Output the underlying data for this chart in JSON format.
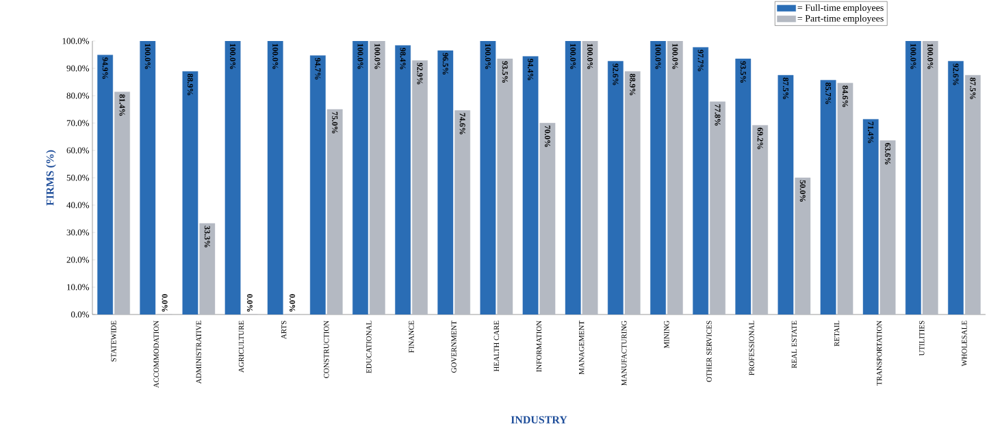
{
  "chart_data": {
    "type": "bar",
    "xlabel": "INDUSTRY",
    "ylabel": "FIRMS (%)",
    "categories": [
      "STATEWIDE",
      "ACCOMMODATION",
      "ADMINISTRATIVE",
      "AGRICULTURE",
      "ARTS",
      "CONSTRUCTION",
      "EDUCATIONAL",
      "FINANCE",
      "GOVERNMENT",
      "HEALTH CARE",
      "INFORMATION",
      "MANAGEMENT",
      "MANUFACTURING",
      "MINING",
      "OTHER SERVICES",
      "PROFESSIONAL",
      "REAL ESTATE",
      "RETAIL",
      "TRANSPORTATION",
      "UTILITIES",
      "WHOLESALE"
    ],
    "series": [
      {
        "name": "= Full-time employees",
        "color": "#2a6db5",
        "values": [
          94.9,
          100.0,
          88.9,
          100.0,
          100.0,
          94.7,
          100.0,
          98.4,
          96.5,
          100.0,
          94.4,
          100.0,
          92.6,
          100.0,
          97.7,
          93.5,
          87.5,
          85.7,
          71.4,
          100.0,
          92.6
        ],
        "value_labels": [
          "94.9%",
          "100.0%",
          "88.9%",
          "100.0%",
          "100.0%",
          "94.7%",
          "100.0%",
          "98.4%",
          "96.5%",
          "100.0%",
          "94.4%",
          "100.0%",
          "92.6%",
          "100.0%",
          "97.7%",
          "93.5%",
          "87.5%",
          "85.7%",
          "71.4%",
          "100.0%",
          "92.6%"
        ]
      },
      {
        "name": "= Part-time employees",
        "color": "#b4b9c2",
        "values": [
          81.4,
          0.0,
          33.3,
          0.0,
          0.0,
          75.0,
          100.0,
          92.9,
          74.6,
          93.5,
          70.0,
          100.0,
          88.9,
          100.0,
          77.8,
          69.2,
          50.0,
          84.6,
          63.6,
          100.0,
          87.5
        ],
        "value_labels": [
          "81.4%",
          "0.0%",
          "33.3%",
          "0.0%",
          "0.0%",
          "75.0%",
          "100.0%",
          "92.9%",
          "74.6%",
          "93.5%",
          "70.0%",
          "100.0%",
          "88.9%",
          "100.0%",
          "77.8%",
          "69.2%",
          "50.0%",
          "84.6%",
          "63.6%",
          "100.0%",
          "87.5%"
        ]
      }
    ],
    "ylim": [
      0,
      100
    ],
    "yticks": [
      {
        "value": 0,
        "label": "0.0%"
      },
      {
        "value": 10,
        "label": "10.0%"
      },
      {
        "value": 20,
        "label": "20.0%"
      },
      {
        "value": 30,
        "label": "30.0%"
      },
      {
        "value": 40,
        "label": "40.0%"
      },
      {
        "value": 50,
        "label": "50.0%"
      },
      {
        "value": 60,
        "label": "60.0%"
      },
      {
        "value": 70,
        "label": "70.0%"
      },
      {
        "value": 80,
        "label": "80.0%"
      },
      {
        "value": 90,
        "label": "90.0%"
      },
      {
        "value": 100,
        "label": "100.0%"
      }
    ],
    "grid": false,
    "legend": "top right"
  }
}
